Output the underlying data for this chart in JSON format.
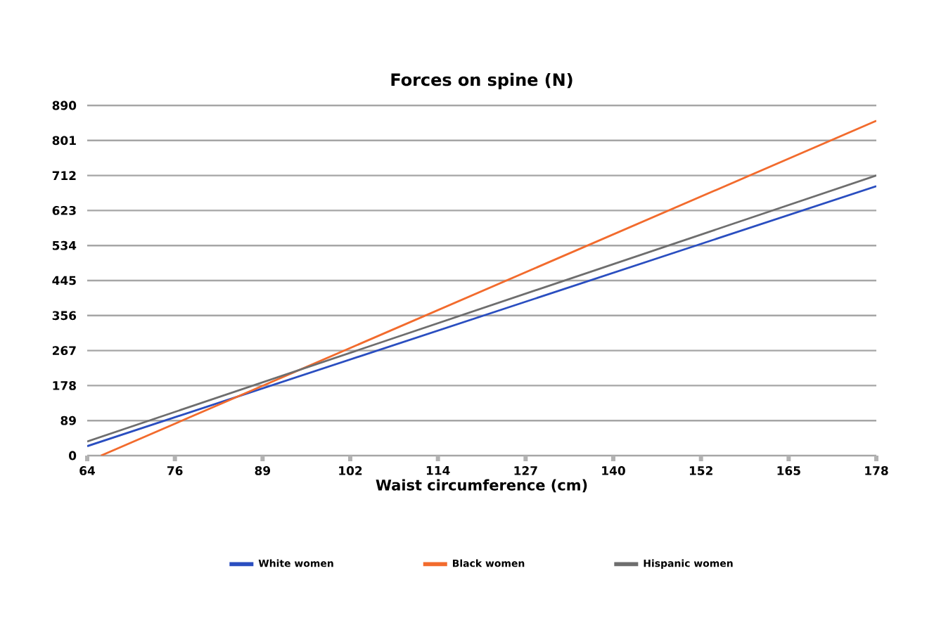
{
  "chart_data": {
    "type": "line",
    "title": "Forces on spine (N)",
    "xlabel": "Waist circumference (cm)",
    "xlim": [
      63.5,
      177.8
    ],
    "xticks": [
      {
        "value": 63.5,
        "label": "64"
      },
      {
        "value": 76.2,
        "label": "76"
      },
      {
        "value": 88.9,
        "label": "89"
      },
      {
        "value": 101.6,
        "label": "102"
      },
      {
        "value": 114.3,
        "label": "114"
      },
      {
        "value": 127,
        "label": "127"
      },
      {
        "value": 139.7,
        "label": "140"
      },
      {
        "value": 152.4,
        "label": "152"
      },
      {
        "value": 165.1,
        "label": "165"
      },
      {
        "value": 177.8,
        "label": "178"
      }
    ],
    "ylim": [
      0,
      890
    ],
    "yticks": [
      0,
      89,
      178,
      267,
      356,
      445,
      534,
      623,
      712,
      801,
      890
    ],
    "grid": "y",
    "legend": "bottom",
    "marker": "none",
    "line_style": "solid",
    "series": [
      {
        "name": "White women",
        "color": "#2a4ec0",
        "x": [
          63.5,
          177.8
        ],
        "values": [
          24,
          685
        ]
      },
      {
        "name": "Black women",
        "color": "#f26b2d",
        "x": [
          65.5,
          177.8
        ],
        "values": [
          0,
          851
        ]
      },
      {
        "name": "Hispanic women",
        "color": "#6e6e6e",
        "x": [
          63.5,
          177.8
        ],
        "values": [
          36,
          712
        ]
      }
    ]
  }
}
